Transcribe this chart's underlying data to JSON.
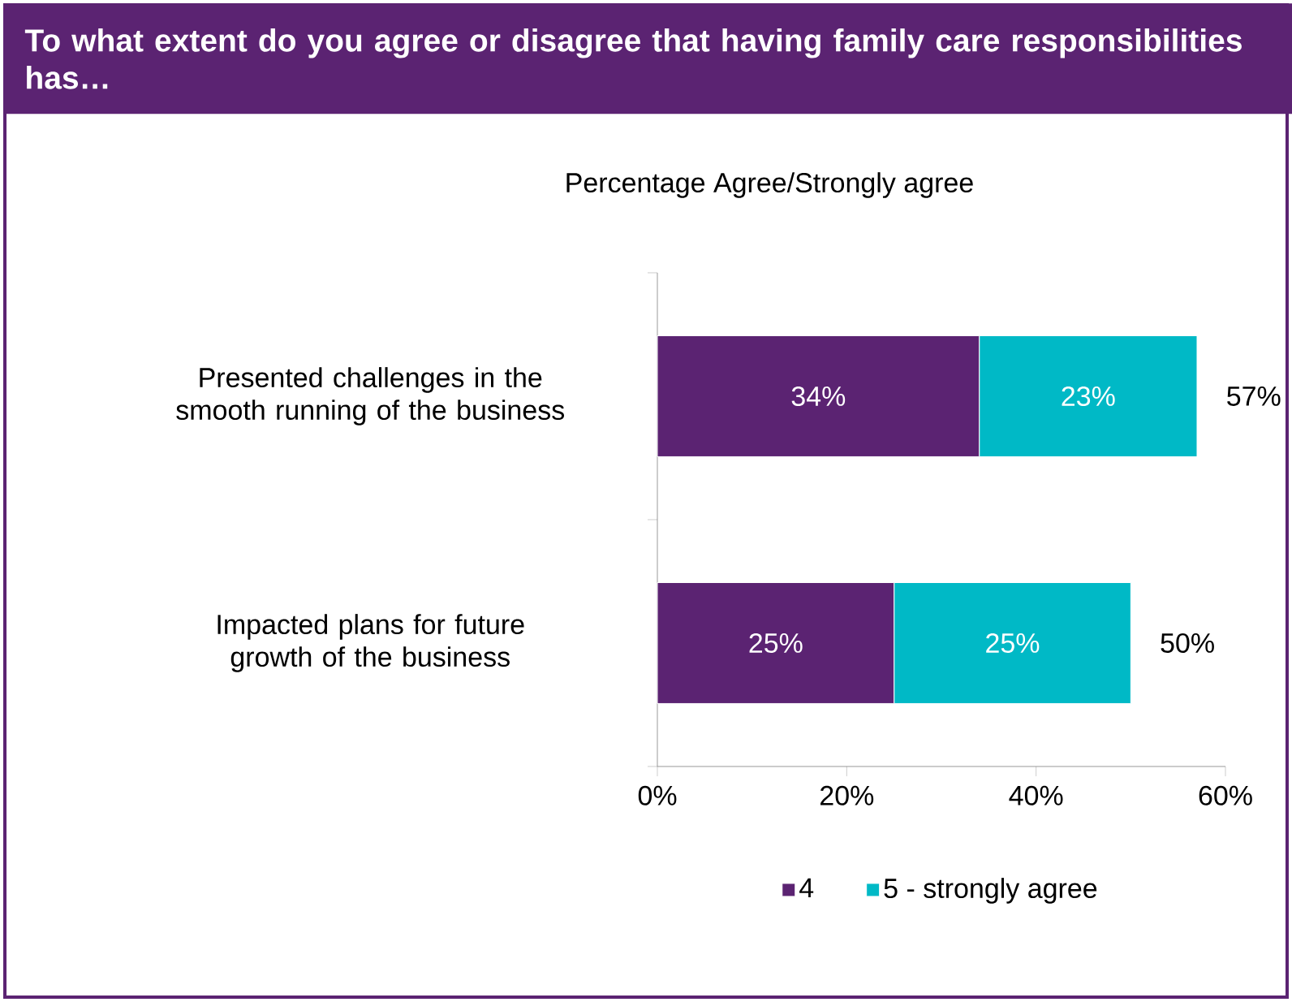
{
  "chart_data": {
    "type": "bar",
    "orientation": "horizontal",
    "stacked": true,
    "title": "To what extent do you agree or disagree that having family care responsibilities has…",
    "subtitle": "Percentage Agree/Strongly agree",
    "categories": [
      "Presented challenges in the smooth running of the business",
      "Impacted plans for future growth of the business"
    ],
    "series": [
      {
        "name": "4",
        "color": "#5b2372",
        "values": [
          34,
          25
        ],
        "value_labels": [
          "34%",
          "25%"
        ]
      },
      {
        "name": "5 - strongly agree",
        "color": "#00b9c6",
        "values": [
          23,
          25
        ],
        "value_labels": [
          "23%",
          "25%"
        ]
      }
    ],
    "totals": [
      "57%",
      "50%"
    ],
    "xlim": [
      0,
      60
    ],
    "xticks": [
      {
        "value": 0,
        "label": "0%"
      },
      {
        "value": 20,
        "label": "20%"
      },
      {
        "value": 40,
        "label": "40%"
      },
      {
        "value": 60,
        "label": "60%"
      }
    ],
    "legend": "bottom"
  }
}
